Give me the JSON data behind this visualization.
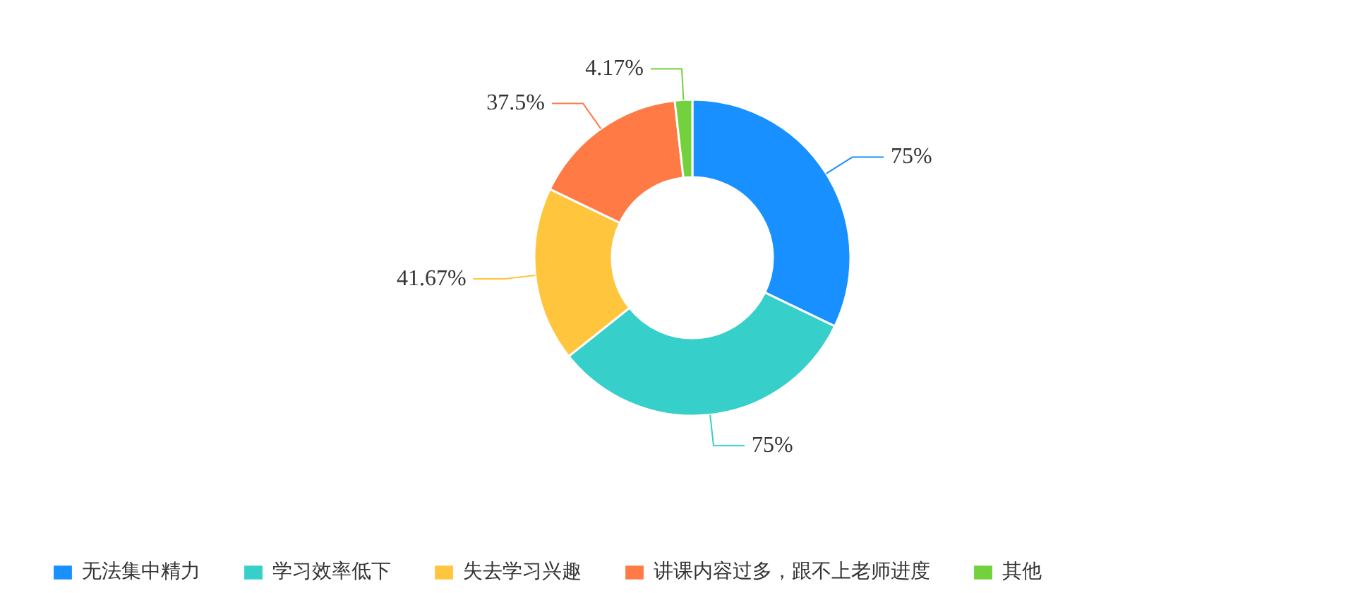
{
  "chart_data": {
    "type": "donut",
    "categories": [
      "无法集中精力",
      "学习效率低下",
      "失去学习兴趣",
      "讲课内容过多，跟不上老师进度",
      "其他"
    ],
    "values": [
      75,
      75,
      41.67,
      37.5,
      4.17
    ],
    "colors": [
      "#1890ff",
      "#36cfc9",
      "#ffc53d",
      "#ff7a45",
      "#73d13d"
    ],
    "value_labels": [
      "75%",
      "75%",
      "41.67%",
      "37.5%",
      "4.17%"
    ],
    "legend": "bottom"
  }
}
